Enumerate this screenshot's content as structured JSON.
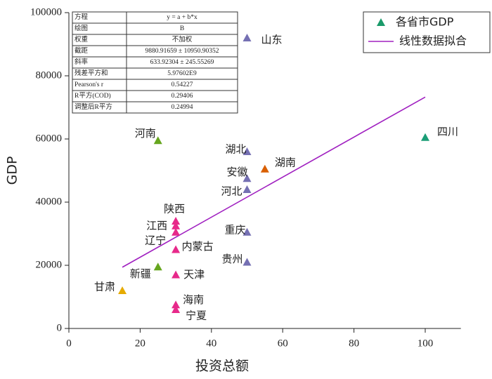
{
  "chart_data": {
    "type": "scatter",
    "xlabel": "投资总额",
    "ylabel": "GDP",
    "xlim": [
      0,
      110
    ],
    "ylim": [
      0,
      100000
    ],
    "xticks": [
      0,
      20,
      40,
      60,
      80,
      100
    ],
    "yticks": [
      0,
      20000,
      40000,
      60000,
      80000,
      100000
    ],
    "legend": "upper right",
    "series": [
      {
        "name": "各省市GDP",
        "color": "#1a9a6a",
        "x": [
          50,
          100,
          25,
          50,
          55,
          50,
          50,
          30,
          30,
          30,
          30,
          30,
          30,
          30,
          50,
          50,
          25,
          15
        ],
        "values": [
          92000,
          60500,
          59500,
          56000,
          50500,
          47500,
          44000,
          34000,
          32500,
          30500,
          25000,
          17000,
          7500,
          6000,
          30500,
          21000,
          19500,
          12000
        ],
        "point_labels": [
          "山东",
          "四川",
          "河南",
          "湖北",
          "湖南",
          "安徽",
          "河北",
          "陕西",
          "江西",
          "辽宁",
          "内蒙古",
          "天津",
          "海南",
          "宁夏",
          "重庆",
          "贵州",
          "新疆",
          "甘肃"
        ],
        "point_colors": [
          "#7570b3",
          "#1b9e77",
          "#66a61e",
          "#7570b3",
          "#d95f02",
          "#7570b3",
          "#7570b3",
          "#e7298a",
          "#e7298a",
          "#e7298a",
          "#e7298a",
          "#e7298a",
          "#e7298a",
          "#e7298a",
          "#7570b3",
          "#7570b3",
          "#66a61e",
          "#e6ab02"
        ]
      },
      {
        "name": "线性数据拟合",
        "color": "#a020c0",
        "x": [
          15,
          100
        ],
        "values": [
          19390,
          73273
        ]
      }
    ],
    "stats_table": [
      [
        "方程",
        "y = a + b*x"
      ],
      [
        "绘图",
        "B"
      ],
      [
        "权重",
        "不加权"
      ],
      [
        "截距",
        "9880.91659 ± 10950.90352"
      ],
      [
        "斜率",
        "633.92304 ± 245.55269"
      ],
      [
        "残差平方和",
        "5.97602E9"
      ],
      [
        "Pearson's r",
        "0.54227"
      ],
      [
        "R平方(COD)",
        "0.29406"
      ],
      [
        "调整后R平方",
        "0.24994"
      ]
    ]
  }
}
